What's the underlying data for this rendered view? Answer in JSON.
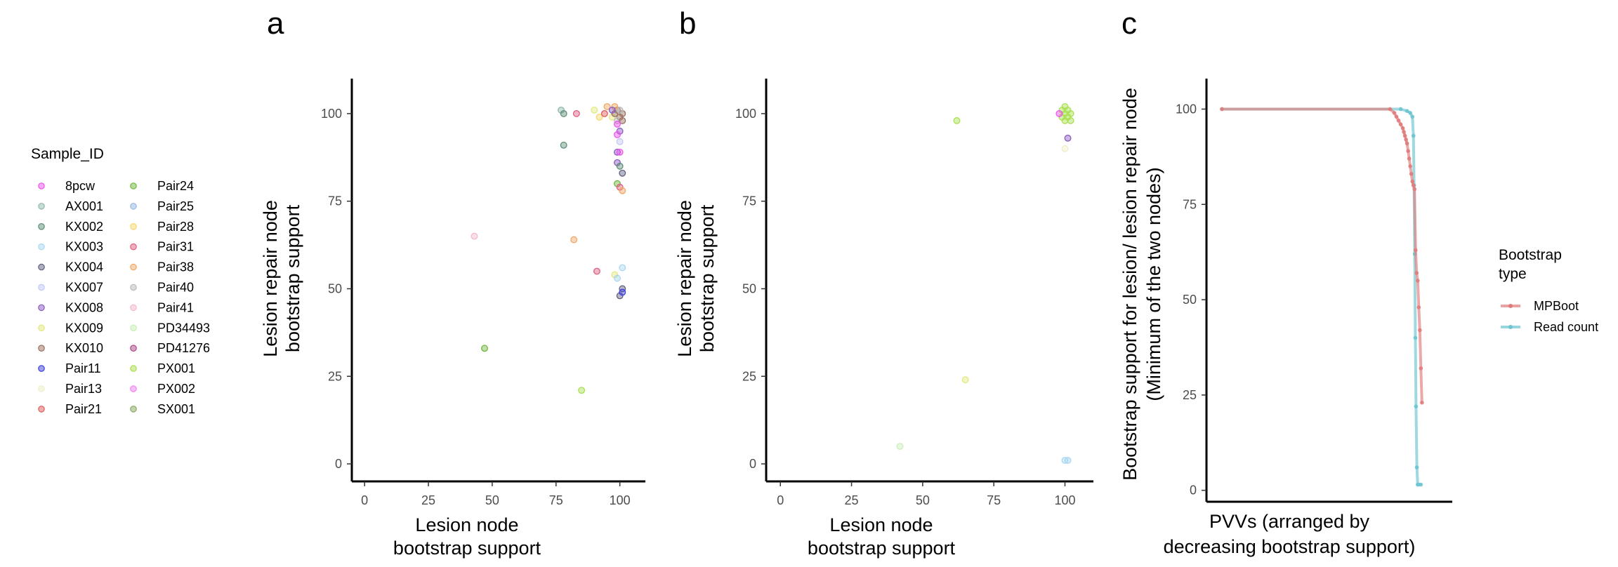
{
  "legend_sample": {
    "title": "Sample_ID",
    "items": [
      {
        "label": "8pcw",
        "color": "#ee55ee"
      },
      {
        "label": "AX001",
        "color": "#8fb9a8"
      },
      {
        "label": "KX002",
        "color": "#5f8f78"
      },
      {
        "label": "KX003",
        "color": "#a9d8f0"
      },
      {
        "label": "KX004",
        "color": "#606080"
      },
      {
        "label": "KX007",
        "color": "#c2c8f5"
      },
      {
        "label": "KX008",
        "color": "#8a5cc0"
      },
      {
        "label": "KX009",
        "color": "#e4e880"
      },
      {
        "label": "KX010",
        "color": "#9c7060"
      },
      {
        "label": "Pair11",
        "color": "#4040e0"
      },
      {
        "label": "Pair13",
        "color": "#eef0c8"
      },
      {
        "label": "Pair21",
        "color": "#e05c5c"
      },
      {
        "label": "Pair24",
        "color": "#70b840"
      },
      {
        "label": "Pair25",
        "color": "#98b8e0"
      },
      {
        "label": "Pair28",
        "color": "#f5d870"
      },
      {
        "label": "Pair31",
        "color": "#e06080"
      },
      {
        "label": "Pair38",
        "color": "#f0a868"
      },
      {
        "label": "Pair40",
        "color": "#bababa"
      },
      {
        "label": "Pair41",
        "color": "#f4b8c8"
      },
      {
        "label": "PD34493",
        "color": "#c8f0b8"
      },
      {
        "label": "PD41276",
        "color": "#b04888"
      },
      {
        "label": "PX001",
        "color": "#a8e050"
      },
      {
        "label": "PX002",
        "color": "#f080f0"
      },
      {
        "label": "SX001",
        "color": "#88a860"
      }
    ]
  },
  "legend_bootstrap": {
    "title_line1": "Bootstrap",
    "title_line2": "type",
    "items": [
      {
        "label": "MPBoot",
        "color": "#e07b7b"
      },
      {
        "label": "Read count",
        "color": "#6cc4cf"
      }
    ]
  },
  "chart_data": [
    {
      "panel": "a",
      "type": "scatter",
      "xlabel_line1": "Lesion node",
      "xlabel_line2": "bootstrap support",
      "ylabel_line1": "Lesion repair node",
      "ylabel_line2": "bootstrap support",
      "xlim": [
        -5,
        110
      ],
      "ylim": [
        -5,
        110
      ],
      "xticks": [
        0,
        25,
        50,
        75,
        100
      ],
      "yticks": [
        0,
        25,
        50,
        75,
        100
      ],
      "points": [
        {
          "x": 77,
          "y": 101,
          "s": "AX001"
        },
        {
          "x": 78,
          "y": 100,
          "s": "KX002"
        },
        {
          "x": 78,
          "y": 91,
          "s": "KX002"
        },
        {
          "x": 83,
          "y": 100,
          "s": "Pair31"
        },
        {
          "x": 90,
          "y": 101,
          "s": "KX009"
        },
        {
          "x": 92,
          "y": 99,
          "s": "Pair28"
        },
        {
          "x": 94,
          "y": 100,
          "s": "Pair21"
        },
        {
          "x": 95,
          "y": 102,
          "s": "Pair38"
        },
        {
          "x": 97,
          "y": 99,
          "s": "KX009"
        },
        {
          "x": 98,
          "y": 100,
          "s": "KX010"
        },
        {
          "x": 99,
          "y": 101,
          "s": "KX010"
        },
        {
          "x": 100,
          "y": 99,
          "s": "KX010"
        },
        {
          "x": 101,
          "y": 100,
          "s": "KX010"
        },
        {
          "x": 99,
          "y": 98,
          "s": "Pair40"
        },
        {
          "x": 100,
          "y": 101,
          "s": "Pair40"
        },
        {
          "x": 101,
          "y": 98,
          "s": "KX010"
        },
        {
          "x": 98,
          "y": 102,
          "s": "Pair38"
        },
        {
          "x": 97,
          "y": 101,
          "s": "KX008"
        },
        {
          "x": 99,
          "y": 97,
          "s": "8pcw"
        },
        {
          "x": 100,
          "y": 95,
          "s": "KX008"
        },
        {
          "x": 99,
          "y": 94,
          "s": "8pcw"
        },
        {
          "x": 100,
          "y": 92,
          "s": "KX007"
        },
        {
          "x": 99,
          "y": 89,
          "s": "KX008"
        },
        {
          "x": 100,
          "y": 89,
          "s": "8pcw"
        },
        {
          "x": 99,
          "y": 86,
          "s": "KX008"
        },
        {
          "x": 100,
          "y": 85,
          "s": "KX002"
        },
        {
          "x": 101,
          "y": 83,
          "s": "KX004"
        },
        {
          "x": 99,
          "y": 80,
          "s": "Pair24"
        },
        {
          "x": 100,
          "y": 79,
          "s": "Pair31"
        },
        {
          "x": 101,
          "y": 78,
          "s": "Pair38"
        },
        {
          "x": 43,
          "y": 65,
          "s": "Pair41"
        },
        {
          "x": 82,
          "y": 64,
          "s": "Pair38"
        },
        {
          "x": 91,
          "y": 55,
          "s": "Pair31"
        },
        {
          "x": 101,
          "y": 56,
          "s": "KX003"
        },
        {
          "x": 98,
          "y": 54,
          "s": "KX009"
        },
        {
          "x": 99,
          "y": 53,
          "s": "KX003"
        },
        {
          "x": 101,
          "y": 50,
          "s": "KX004"
        },
        {
          "x": 100,
          "y": 48,
          "s": "KX004"
        },
        {
          "x": 101,
          "y": 49,
          "s": "Pair11"
        },
        {
          "x": 47,
          "y": 33,
          "s": "Pair24"
        },
        {
          "x": 85,
          "y": 21,
          "s": "PX001"
        }
      ]
    },
    {
      "panel": "b",
      "type": "scatter",
      "xlabel_line1": "Lesion node",
      "xlabel_line2": "bootstrap support",
      "ylabel_line1": "Lesion repair node",
      "ylabel_line2": "bootstrap support",
      "xlim": [
        -5,
        110
      ],
      "ylim": [
        -5,
        110
      ],
      "xticks": [
        0,
        25,
        50,
        75,
        100
      ],
      "yticks": [
        0,
        25,
        50,
        75,
        100
      ],
      "points": [
        {
          "x": 99,
          "y": 101,
          "s": "PX001"
        },
        {
          "x": 100,
          "y": 100,
          "s": "PX001"
        },
        {
          "x": 101,
          "y": 99,
          "s": "PX001"
        },
        {
          "x": 99,
          "y": 99,
          "s": "PX001"
        },
        {
          "x": 100,
          "y": 102,
          "s": "PX001"
        },
        {
          "x": 101,
          "y": 101,
          "s": "PX001"
        },
        {
          "x": 102,
          "y": 100,
          "s": "PX001"
        },
        {
          "x": 98,
          "y": 100,
          "s": "8pcw"
        },
        {
          "x": 100,
          "y": 98,
          "s": "PX001"
        },
        {
          "x": 102,
          "y": 98,
          "s": "PX001"
        },
        {
          "x": 101,
          "y": 93,
          "s": "KX008"
        },
        {
          "x": 100,
          "y": 90,
          "s": "Pair13"
        },
        {
          "x": 62,
          "y": 98,
          "s": "PX001"
        },
        {
          "x": 65,
          "y": 24,
          "s": "KX009"
        },
        {
          "x": 42,
          "y": 5,
          "s": "PD34493"
        },
        {
          "x": 100,
          "y": 1,
          "s": "KX003"
        },
        {
          "x": 101,
          "y": 1,
          "s": "KX003"
        }
      ]
    },
    {
      "panel": "c",
      "type": "line",
      "xlabel_line1": "PVVs (arranged by",
      "xlabel_line2": "decreasing bootstrap support)",
      "ylabel_line1": "Bootstrap support for lesion/ lesion repair node",
      "ylabel_line2": "(Minimum of the two nodes)",
      "ylim": [
        -3,
        108
      ],
      "yticks": [
        0,
        25,
        50,
        75,
        100
      ],
      "n_pvvs": 100,
      "series": [
        {
          "name": "MPBoot",
          "color": "#e07b7b",
          "points": [
            [
              1,
              100
            ],
            [
              80,
              100
            ],
            [
              82,
              99
            ],
            [
              83,
              98
            ],
            [
              84,
              97
            ],
            [
              85,
              96
            ],
            [
              86,
              95
            ],
            [
              86.5,
              94
            ],
            [
              87,
              93
            ],
            [
              87.5,
              92
            ],
            [
              88,
              91
            ],
            [
              88.5,
              89
            ],
            [
              89,
              87
            ],
            [
              89.5,
              85
            ],
            [
              90,
              83
            ],
            [
              90.5,
              81
            ],
            [
              91,
              80
            ],
            [
              91.5,
              79
            ],
            [
              92,
              63
            ],
            [
              92.5,
              57
            ],
            [
              93,
              55
            ],
            [
              93.5,
              48
            ],
            [
              94,
              42
            ],
            [
              94.5,
              32
            ],
            [
              95,
              23
            ]
          ]
        },
        {
          "name": "Read count",
          "color": "#6cc4cf",
          "points": [
            [
              1,
              100
            ],
            [
              85,
              100
            ],
            [
              88,
              99.5
            ],
            [
              89.5,
              99
            ],
            [
              90.5,
              98
            ],
            [
              91,
              93
            ],
            [
              91.3,
              80
            ],
            [
              91.6,
              62
            ],
            [
              91.9,
              40
            ],
            [
              92.2,
              22
            ],
            [
              92.6,
              6
            ],
            [
              93,
              1.5
            ],
            [
              93.5,
              1.5
            ],
            [
              94.5,
              1.5
            ]
          ]
        }
      ]
    }
  ]
}
